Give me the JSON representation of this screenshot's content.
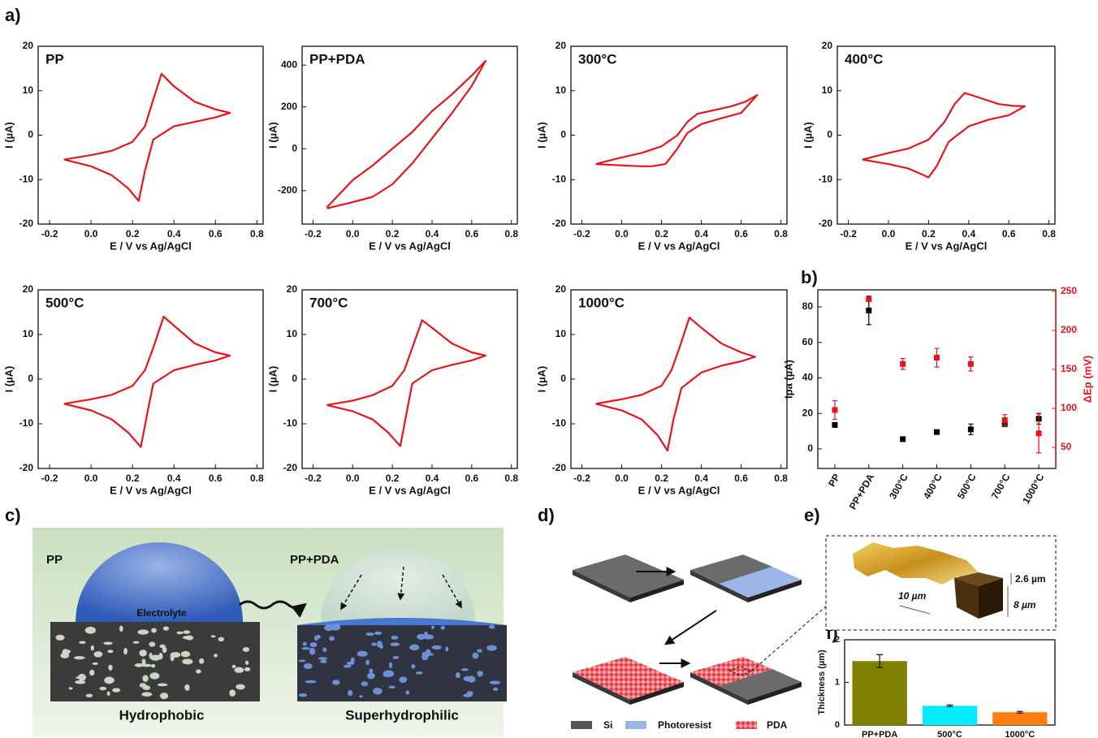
{
  "panel_labels": [
    "a)",
    "b)",
    "c)",
    "d)",
    "e)",
    "f)"
  ],
  "chart_data": [
    {
      "type": "line",
      "title": "PP",
      "x_label": "E / V vs Ag/AgCl",
      "y_label": "I (µA)",
      "xlim": [
        -0.255,
        0.83
      ],
      "xticks": [
        -0.2,
        {
          "value": 0,
          "label": "0.0"
        },
        0.2,
        0.4,
        0.6,
        0.8
      ],
      "ylim": [
        -20,
        20
      ],
      "yticks": [
        -20,
        -10,
        0,
        10,
        20
      ],
      "x": [
        -0.13,
        0.0,
        0.1,
        0.2,
        0.26,
        0.3,
        0.34,
        0.4,
        0.5,
        0.6,
        0.67,
        0.6,
        0.5,
        0.4,
        0.3,
        0.26,
        0.23,
        0.18,
        0.1,
        0.0,
        -0.13
      ],
      "series": [
        {
          "color": "#e8141b",
          "values": [
            -5.5,
            -4.5,
            -3.5,
            -1.5,
            2,
            8,
            13.8,
            11,
            7.5,
            5.8,
            5,
            4,
            3,
            2,
            -1,
            -8,
            -14.8,
            -12,
            -9,
            -7,
            -5.5
          ]
        }
      ]
    },
    {
      "type": "line",
      "title": "PP+PDA",
      "x_label": "E / V vs Ag/AgCl",
      "y_label": "I (µA)",
      "xlim": [
        -0.255,
        0.83
      ],
      "xticks": [
        -0.2,
        {
          "value": 0,
          "label": "0.0"
        },
        0.2,
        0.4,
        0.6,
        0.8
      ],
      "ylim": [
        -360,
        490
      ],
      "yticks": [
        -200,
        0,
        200,
        400
      ],
      "x": [
        -0.13,
        0.0,
        0.1,
        0.2,
        0.3,
        0.4,
        0.5,
        0.6,
        0.67,
        0.6,
        0.5,
        0.4,
        0.3,
        0.2,
        0.1,
        0.0,
        -0.13
      ],
      "series": [
        {
          "color": "#e8141b",
          "values": [
            -280,
            -150,
            -80,
            0,
            80,
            180,
            260,
            350,
            420,
            300,
            170,
            50,
            -70,
            -170,
            -230,
            -255,
            -285
          ]
        }
      ]
    },
    {
      "type": "line",
      "title": "300°C",
      "x_label": "E / V vs Ag/AgCl",
      "y_label": "I (µA)",
      "xlim": [
        -0.255,
        0.83
      ],
      "xticks": [
        -0.2,
        {
          "value": 0,
          "label": "0.0"
        },
        0.2,
        0.4,
        0.6,
        0.8
      ],
      "ylim": [
        -20,
        20
      ],
      "yticks": [
        -20,
        -10,
        0,
        10,
        20
      ],
      "x": [
        -0.13,
        0.0,
        0.1,
        0.2,
        0.28,
        0.33,
        0.38,
        0.45,
        0.55,
        0.62,
        0.68,
        0.6,
        0.5,
        0.4,
        0.33,
        0.28,
        0.22,
        0.15,
        0.1,
        0.0,
        -0.13
      ],
      "series": [
        {
          "color": "#e8141b",
          "values": [
            -6.5,
            -5,
            -4,
            -2.5,
            0,
            3,
            4.8,
            5.5,
            6.5,
            7.5,
            9,
            5,
            3.8,
            2.5,
            0.5,
            -3,
            -6.5,
            -7,
            -7,
            -6.8,
            -6.5
          ]
        }
      ]
    },
    {
      "type": "line",
      "title": "400°C",
      "x_label": "E / V vs Ag/AgCl",
      "y_label": "I (µA)",
      "xlim": [
        -0.255,
        0.83
      ],
      "xticks": [
        -0.2,
        {
          "value": 0,
          "label": "0.0"
        },
        0.2,
        0.4,
        0.6,
        0.8
      ],
      "ylim": [
        -20,
        20
      ],
      "yticks": [
        -20,
        -10,
        0,
        10,
        20
      ],
      "x": [
        -0.13,
        0.0,
        0.1,
        0.2,
        0.28,
        0.33,
        0.38,
        0.45,
        0.55,
        0.62,
        0.68,
        0.6,
        0.5,
        0.4,
        0.3,
        0.24,
        0.2,
        0.15,
        0.1,
        0.0,
        -0.13
      ],
      "series": [
        {
          "color": "#e8141b",
          "values": [
            -5.5,
            -4,
            -3,
            -1,
            3,
            7,
            9.5,
            8.5,
            7,
            6.6,
            6.5,
            4.5,
            3.5,
            2,
            -1.5,
            -7,
            -9.5,
            -8.5,
            -7.5,
            -6.5,
            -5.5
          ]
        }
      ]
    },
    {
      "type": "line",
      "title": "500°C",
      "x_label": "E / V vs Ag/AgCl",
      "y_label": "I (µA)",
      "xlim": [
        -0.255,
        0.83
      ],
      "xticks": [
        -0.2,
        {
          "value": 0,
          "label": "0.0"
        },
        0.2,
        0.4,
        0.6,
        0.8
      ],
      "ylim": [
        -20,
        20
      ],
      "yticks": [
        -20,
        -10,
        0,
        10,
        20
      ],
      "x": [
        -0.13,
        0.0,
        0.1,
        0.2,
        0.26,
        0.3,
        0.35,
        0.4,
        0.5,
        0.6,
        0.67,
        0.6,
        0.5,
        0.4,
        0.3,
        0.27,
        0.24,
        0.18,
        0.1,
        0.0,
        -0.13
      ],
      "series": [
        {
          "color": "#e8141b",
          "values": [
            -5.5,
            -4.5,
            -3.5,
            -1.5,
            2,
            7,
            14,
            12,
            8,
            6,
            5.3,
            4.2,
            3.2,
            2,
            -1,
            -8,
            -15.2,
            -12,
            -9,
            -7,
            -5.5
          ]
        }
      ]
    },
    {
      "type": "line",
      "title": "700°C",
      "x_label": "E / V vs Ag/AgCl",
      "y_label": "I (µA)",
      "xlim": [
        -0.255,
        0.83
      ],
      "xticks": [
        -0.2,
        {
          "value": 0,
          "label": "0.0"
        },
        0.2,
        0.4,
        0.6,
        0.8
      ],
      "ylim": [
        -20,
        20
      ],
      "yticks": [
        -20,
        -10,
        0,
        10,
        20
      ],
      "x": [
        -0.13,
        0.0,
        0.1,
        0.2,
        0.26,
        0.3,
        0.35,
        0.4,
        0.5,
        0.6,
        0.67,
        0.6,
        0.5,
        0.4,
        0.3,
        0.27,
        0.24,
        0.18,
        0.1,
        0.0,
        -0.13
      ],
      "series": [
        {
          "color": "#e8141b",
          "values": [
            -5.8,
            -4.8,
            -3.6,
            -1.5,
            2,
            7,
            13.2,
            11.5,
            8,
            6,
            5.3,
            4.2,
            3.2,
            2,
            -1,
            -8,
            -15,
            -12,
            -9,
            -7.2,
            -5.8
          ]
        }
      ]
    },
    {
      "type": "line",
      "title": "1000°C",
      "x_label": "E / V vs Ag/AgCl",
      "y_label": "I (µA)",
      "xlim": [
        -0.255,
        0.83
      ],
      "xticks": [
        -0.2,
        {
          "value": 0,
          "label": "0.0"
        },
        0.2,
        0.4,
        0.6,
        0.8
      ],
      "ylim": [
        -20,
        20
      ],
      "yticks": [
        -20,
        -10,
        0,
        10,
        20
      ],
      "x": [
        -0.13,
        0.0,
        0.1,
        0.2,
        0.25,
        0.29,
        0.34,
        0.4,
        0.5,
        0.6,
        0.67,
        0.6,
        0.5,
        0.4,
        0.3,
        0.26,
        0.23,
        0.18,
        0.1,
        0.0,
        -0.13
      ],
      "series": [
        {
          "color": "#e8141b",
          "values": [
            -5.5,
            -4.5,
            -3.5,
            -1.5,
            2,
            7,
            13.8,
            11.5,
            8,
            6,
            5,
            4,
            3,
            1.5,
            -2,
            -9,
            -16,
            -12.5,
            -9,
            -7,
            -5.5
          ]
        }
      ]
    },
    {
      "type": "scatter",
      "y_label": "Ipa (µA)",
      "y2_label": "ΔEp (mV)",
      "categories": [
        "PP",
        "PP+PDA",
        "300°C",
        "400°C",
        "500°C",
        "700°C",
        "1000°C"
      ],
      "ylim": [
        -11,
        89.6
      ],
      "yticks": [
        0,
        20,
        40,
        60,
        80
      ],
      "y2lim": [
        23,
        252
      ],
      "y2ticks": [
        50,
        100,
        150,
        200,
        250
      ],
      "y2color": "#e8141b",
      "series": [
        {
          "color": "#000000",
          "values": [
            13.5,
            78,
            5.5,
            9.5,
            11,
            14,
            17
          ],
          "errors": [
            1,
            8,
            0.5,
            0.5,
            3,
            1,
            3
          ]
        },
        {
          "color": "#e8141b",
          "axis": "y2",
          "values": [
            98,
            240,
            157,
            165,
            157,
            85,
            68
          ],
          "errors": [
            12,
            2,
            7,
            12,
            9,
            7,
            25
          ]
        }
      ]
    },
    {
      "type": "bar",
      "y_label": "Thickness (µm)",
      "categories": [
        "PP+PDA",
        "500°C",
        "1000°C"
      ],
      "ylim": [
        0,
        2
      ],
      "yticks": [
        0,
        1,
        2
      ],
      "values": [
        1.5,
        0.45,
        0.3
      ],
      "errors": [
        0.15,
        0.02,
        0.02
      ],
      "colors": [
        "#808000",
        "#00eeff",
        "#ff7f0e"
      ]
    }
  ],
  "diagram_c": {
    "left_label": "PP",
    "right_label": "PP+PDA",
    "drop_label": "Electrolyte",
    "left_caption": "Hydrophobic",
    "right_caption": "Superhydrophilic"
  },
  "diagram_d": {
    "legend": [
      "Si",
      "Photoresist",
      "PDA"
    ]
  },
  "diagram_e": {
    "step_height": "2.6 µm",
    "block_height": "8 µm",
    "scale": "10 µm"
  }
}
